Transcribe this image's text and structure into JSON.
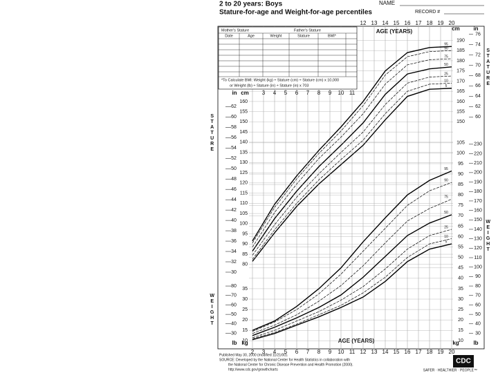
{
  "header": {
    "title": "2 to 20 years: Boys",
    "subtitle": "Stature-for-age and Weight-for-age percentiles",
    "name_label": "NAME",
    "record_label": "RECORD #"
  },
  "record_table": {
    "mother": "Mother's Stature",
    "father": "Father's Stature",
    "columns": [
      "Date",
      "Age",
      "Weight",
      "Stature",
      "BMI*"
    ],
    "note": [
      "*To Calculate BMI: Weight (kg) ÷ Stature (cm) ÷ Stature (cm) x 10,000",
      "or Weight (lb) ÷ Stature (in) ÷ Stature (in) x 703"
    ]
  },
  "chart_data": [
    {
      "type": "line",
      "y_label": "STATURE",
      "x_label": "AGE (YEARS)",
      "y_unit": "cm",
      "y2_unit": "in",
      "color": "#000000",
      "grid": true,
      "x": [
        2,
        4,
        6,
        8,
        10,
        12,
        14,
        16,
        18,
        20
      ],
      "xlim": [
        2,
        20
      ],
      "xticks": [
        2,
        3,
        4,
        5,
        6,
        7,
        8,
        9,
        10,
        11,
        12,
        13,
        14,
        15,
        16,
        17,
        18,
        19,
        20
      ],
      "ylim": [
        76.2,
        195.58
      ],
      "yticks": [
        80,
        85,
        90,
        95,
        100,
        105,
        110,
        115,
        120,
        125,
        130,
        135,
        140,
        145,
        150,
        155,
        160,
        165,
        170,
        175,
        180,
        185,
        190
      ],
      "y2lim": [
        30,
        77
      ],
      "y2ticks": [
        30,
        32,
        34,
        36,
        38,
        40,
        42,
        44,
        46,
        48,
        50,
        52,
        54,
        56,
        58,
        60,
        62,
        64,
        66,
        68,
        70,
        72,
        74,
        76
      ],
      "series": [
        {
          "name": "5",
          "values": [
            81.5,
            95.5,
            108.5,
            119.5,
            129,
            138.5,
            151,
            162.5,
            166,
            166.5
          ]
        },
        {
          "name": "10",
          "values": [
            82.5,
            97,
            110,
            121.5,
            131.5,
            141,
            154,
            165,
            168.5,
            169
          ]
        },
        {
          "name": "25",
          "values": [
            84.5,
            99.5,
            113,
            124.5,
            135,
            145,
            158.5,
            169,
            172,
            172.5
          ]
        },
        {
          "name": "50",
          "values": [
            86.5,
            102.5,
            116,
            128,
            138.5,
            149.5,
            163.5,
            173.5,
            176,
            177
          ]
        },
        {
          "name": "75",
          "values": [
            88.5,
            105.5,
            119.5,
            132,
            142.5,
            154,
            168.5,
            178,
            180.5,
            181
          ]
        },
        {
          "name": "90",
          "values": [
            90.5,
            108,
            122,
            134.5,
            145.5,
            158,
            173,
            182,
            184.5,
            185
          ]
        },
        {
          "name": "95",
          "values": [
            91.5,
            109.5,
            123.5,
            136,
            147.5,
            160,
            175,
            184,
            186.5,
            187
          ]
        }
      ]
    },
    {
      "type": "line",
      "y_label": "WEIGHT",
      "x_label": "AGE (YEARS)",
      "y_unit": "kg",
      "y2_unit": "lb",
      "color": "#000000",
      "grid": true,
      "x": [
        2,
        4,
        6,
        8,
        10,
        12,
        14,
        16,
        18,
        20
      ],
      "xlim": [
        2,
        20
      ],
      "xticks": [
        2,
        3,
        4,
        5,
        6,
        7,
        8,
        9,
        10,
        11,
        12,
        13,
        14,
        15,
        16,
        17,
        18,
        19,
        20
      ],
      "ylim": [
        6.8,
        106.6
      ],
      "yticks": [
        10,
        15,
        20,
        25,
        30,
        35,
        40,
        45,
        50,
        55,
        60,
        65,
        70,
        75,
        80,
        85,
        90,
        95,
        100,
        105
      ],
      "y2lim": [
        15,
        235
      ],
      "y2ticks": [
        30,
        40,
        50,
        60,
        70,
        80,
        90,
        100,
        110,
        120,
        130,
        140,
        150,
        160,
        170,
        180,
        190,
        200,
        210,
        220,
        230
      ],
      "series": [
        {
          "name": "5",
          "values": [
            10.5,
            13.5,
            17.5,
            21.5,
            26,
            31,
            38.5,
            48,
            54,
            56.5
          ]
        },
        {
          "name": "10",
          "values": [
            11,
            14,
            18,
            22.5,
            27,
            33,
            40.5,
            50,
            56.5,
            59
          ]
        },
        {
          "name": "25",
          "values": [
            11.5,
            15,
            19.5,
            24,
            29.5,
            36,
            44.5,
            54,
            60.5,
            63.5
          ]
        },
        {
          "name": "50",
          "values": [
            12.5,
            16.5,
            21,
            26,
            32,
            40.5,
            50.5,
            60.5,
            66.5,
            70.5
          ]
        },
        {
          "name": "75",
          "values": [
            13.5,
            17.5,
            22.5,
            29,
            36.5,
            46,
            57,
            67.5,
            73.5,
            78
          ]
        },
        {
          "name": "90",
          "values": [
            14.5,
            19,
            25,
            32.5,
            42,
            53,
            64,
            75,
            82,
            86
          ]
        },
        {
          "name": "95",
          "values": [
            15,
            19.5,
            26.5,
            35,
            45,
            57.5,
            69,
            80,
            87,
            91.5
          ]
        }
      ]
    }
  ],
  "footer": {
    "lines": [
      "Published May 30, 2000 (modified 11/21/00).",
      "SOURCE: Developed by the National Center for Health Statistics in collaboration with",
      "the National Center for Chronic Disease Prevention and Health Promotion (2000).",
      "http://www.cdc.gov/growthcharts"
    ],
    "logo": "CDC",
    "tagline": "SAFER · HEALTHIER · PEOPLE™"
  }
}
